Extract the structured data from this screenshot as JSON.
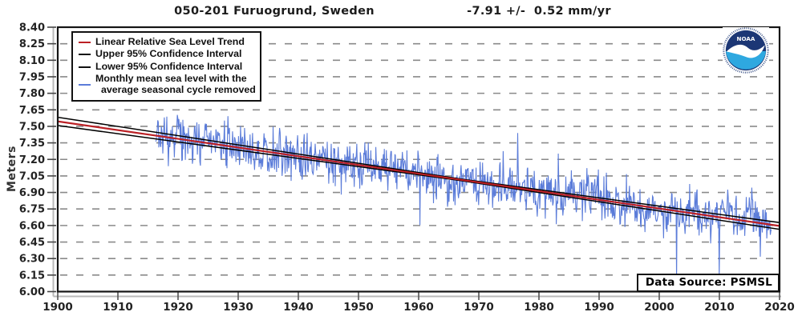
{
  "header": {
    "station_title": "050-201 Furuogrund, Sweden",
    "trend_title": "-7.91 +/-  0.52 mm/yr"
  },
  "footer": {
    "data_source": "Data Source: PSMSL"
  },
  "logo": {
    "name": "NOAA logo",
    "text": "NOAA",
    "navy": "#1c3775",
    "light_blue": "#2ea8e0"
  },
  "legend": {
    "items": [
      {
        "label_lines": [
          "Linear Relative Sea Level Trend"
        ],
        "color": "#bb2025"
      },
      {
        "label_lines": [
          "Upper 95% Confidence Interval"
        ],
        "color": "#111111"
      },
      {
        "label_lines": [
          "Lower 95% Confidence Interval"
        ],
        "color": "#111111"
      },
      {
        "label_lines": [
          "Monthly mean sea level with the",
          "average seasonal cycle removed"
        ],
        "color": "#5b7cd9"
      }
    ]
  },
  "chart_data": {
    "type": "line",
    "title": "050-201 Furuogrund, Sweden",
    "trend_annotation": "-7.91 +/- 0.52 mm/yr",
    "ylabel": "Meters",
    "xlabel": "",
    "xlim": [
      1900,
      2020
    ],
    "ylim": [
      6.0,
      8.4
    ],
    "x_ticks": [
      1900,
      1910,
      1920,
      1930,
      1940,
      1950,
      1960,
      1970,
      1980,
      1990,
      2000,
      2010,
      2020
    ],
    "y_ticks": [
      8.4,
      8.25,
      8.1,
      7.95,
      7.8,
      7.65,
      7.5,
      7.35,
      7.2,
      7.05,
      6.9,
      6.75,
      6.6,
      6.45,
      6.3,
      6.15,
      6.0
    ],
    "grid": "horizontal-dashed",
    "grid_color": "#8a8a8a",
    "legend_position": "top-left",
    "series": [
      {
        "name": "Linear Relative Sea Level Trend",
        "type": "trend",
        "color": "#bb2025",
        "x": [
          1900,
          2020
        ],
        "y": [
          7.545,
          6.596
        ],
        "rate_mm_per_yr": -7.91
      },
      {
        "name": "Upper 95% Confidence Interval",
        "type": "ci-upper",
        "color": "#000000"
      },
      {
        "name": "Lower 95% Confidence Interval",
        "type": "ci-lower",
        "color": "#000000"
      },
      {
        "name": "Monthly mean sea level with the average seasonal cycle removed",
        "type": "monthly",
        "color": "#5b7cd9",
        "start_year": 1916.3,
        "end_year": 2018.6,
        "points_per_year": 12,
        "noise_sigma_m": 0.1,
        "noise_ar1": 0.3,
        "lf_amp_m": 0.025,
        "lf_period_yr": 30,
        "seed": 20,
        "spikes": [
          {
            "year": 1923.1,
            "offset_m": 0.24
          },
          {
            "year": 1938.8,
            "offset_m": -0.3
          },
          {
            "year": 1947.3,
            "offset_m": -0.33
          },
          {
            "year": 1960.2,
            "offset_m": -0.28
          },
          {
            "year": 1976.5,
            "offset_m": 0.25
          },
          {
            "year": 1983.2,
            "offset_m": 0.28
          },
          {
            "year": 1989.9,
            "offset_m": 0.34
          },
          {
            "year": 2002.9,
            "offset_m": -0.52
          },
          {
            "year": 2010.0,
            "offset_m": -0.38
          },
          {
            "year": 2016.8,
            "offset_m": -0.33
          }
        ]
      }
    ],
    "confidence_interval": {
      "uncertainty_mm_per_yr": 0.52,
      "center_year": 1967,
      "min_offset_m": 0.007,
      "offset_slope_m_per_yr": 0.00045
    }
  }
}
